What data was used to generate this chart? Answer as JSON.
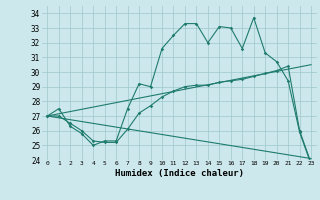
{
  "xlabel": "Humidex (Indice chaleur)",
  "xlim": [
    -0.5,
    23.5
  ],
  "ylim": [
    24,
    34.5
  ],
  "yticks": [
    24,
    25,
    26,
    27,
    28,
    29,
    30,
    31,
    32,
    33,
    34
  ],
  "xticks": [
    0,
    1,
    2,
    3,
    4,
    5,
    6,
    7,
    8,
    9,
    10,
    11,
    12,
    13,
    14,
    15,
    16,
    17,
    18,
    19,
    20,
    21,
    22,
    23
  ],
  "bg_color": "#cde8ec",
  "grid_color": "#9dc8cc",
  "line_color": "#1e7b6e",
  "line1_x": [
    0,
    1,
    2,
    3,
    4,
    5,
    6,
    7,
    8,
    9,
    10,
    11,
    12,
    13,
    14,
    15,
    16,
    17,
    18,
    19,
    20,
    21,
    22,
    23
  ],
  "line1_y": [
    27.0,
    27.5,
    26.3,
    25.8,
    25.0,
    25.3,
    25.3,
    27.5,
    29.2,
    29.0,
    31.6,
    32.5,
    33.3,
    33.3,
    32.0,
    33.1,
    33.0,
    31.6,
    33.7,
    31.3,
    30.7,
    29.4,
    25.9,
    23.7
  ],
  "line2_x": [
    0,
    23
  ],
  "line2_y": [
    27.0,
    30.5
  ],
  "line3_x": [
    0,
    1,
    2,
    3,
    4,
    5,
    6,
    7,
    8,
    9,
    10,
    11,
    12,
    13,
    14,
    15,
    16,
    17,
    18,
    19,
    20,
    21,
    22,
    23
  ],
  "line3_y": [
    27.0,
    27.0,
    26.5,
    26.0,
    25.3,
    25.2,
    25.2,
    26.1,
    27.2,
    27.7,
    28.3,
    28.7,
    29.0,
    29.1,
    29.1,
    29.3,
    29.4,
    29.5,
    29.7,
    29.9,
    30.1,
    30.4,
    26.0,
    23.8
  ],
  "line4_x": [
    0,
    23
  ],
  "line4_y": [
    27.0,
    24.1
  ]
}
